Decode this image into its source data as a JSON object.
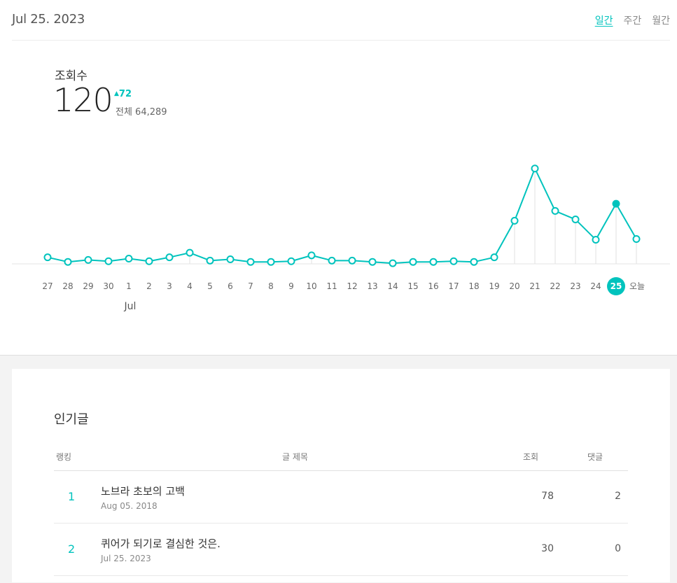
{
  "header": {
    "date": "Jul 25. 2023",
    "periods": [
      {
        "label": "일간",
        "active": true
      },
      {
        "label": "주간",
        "active": false
      },
      {
        "label": "월간",
        "active": false
      }
    ]
  },
  "metric": {
    "label": "조회수",
    "value": "120",
    "delta": "72",
    "total": "전체 64,289"
  },
  "chart_data": {
    "type": "line",
    "x": [
      "27",
      "28",
      "29",
      "30",
      "1",
      "2",
      "3",
      "4",
      "5",
      "6",
      "7",
      "8",
      "9",
      "10",
      "11",
      "12",
      "13",
      "14",
      "15",
      "16",
      "17",
      "18",
      "19",
      "20",
      "21",
      "22",
      "23",
      "24",
      "25",
      "오늘"
    ],
    "month_label": "Jul",
    "month_label_under": "1",
    "values": [
      10,
      3,
      6,
      4,
      8,
      4,
      10,
      17,
      5,
      7,
      3,
      3,
      4,
      13,
      5,
      5,
      3,
      1,
      3,
      3,
      4,
      3,
      10,
      66,
      146,
      81,
      68,
      37,
      92,
      38
    ],
    "highlight_index": 28,
    "accent": "#00c3bd",
    "ylim": [
      0,
      150
    ]
  },
  "popular": {
    "title": "인기글",
    "columns": {
      "rank": "랭킹",
      "title": "글 제목",
      "views": "조회",
      "comments": "댓글"
    },
    "rows": [
      {
        "rank": "1",
        "title": "노브라 초보의 고백",
        "date": "Aug 05. 2018",
        "views": "78",
        "comments": "2"
      },
      {
        "rank": "2",
        "title": "퀴어가 되기로 결심한 것은.",
        "date": "Jul 25. 2023",
        "views": "30",
        "comments": "0"
      }
    ]
  }
}
